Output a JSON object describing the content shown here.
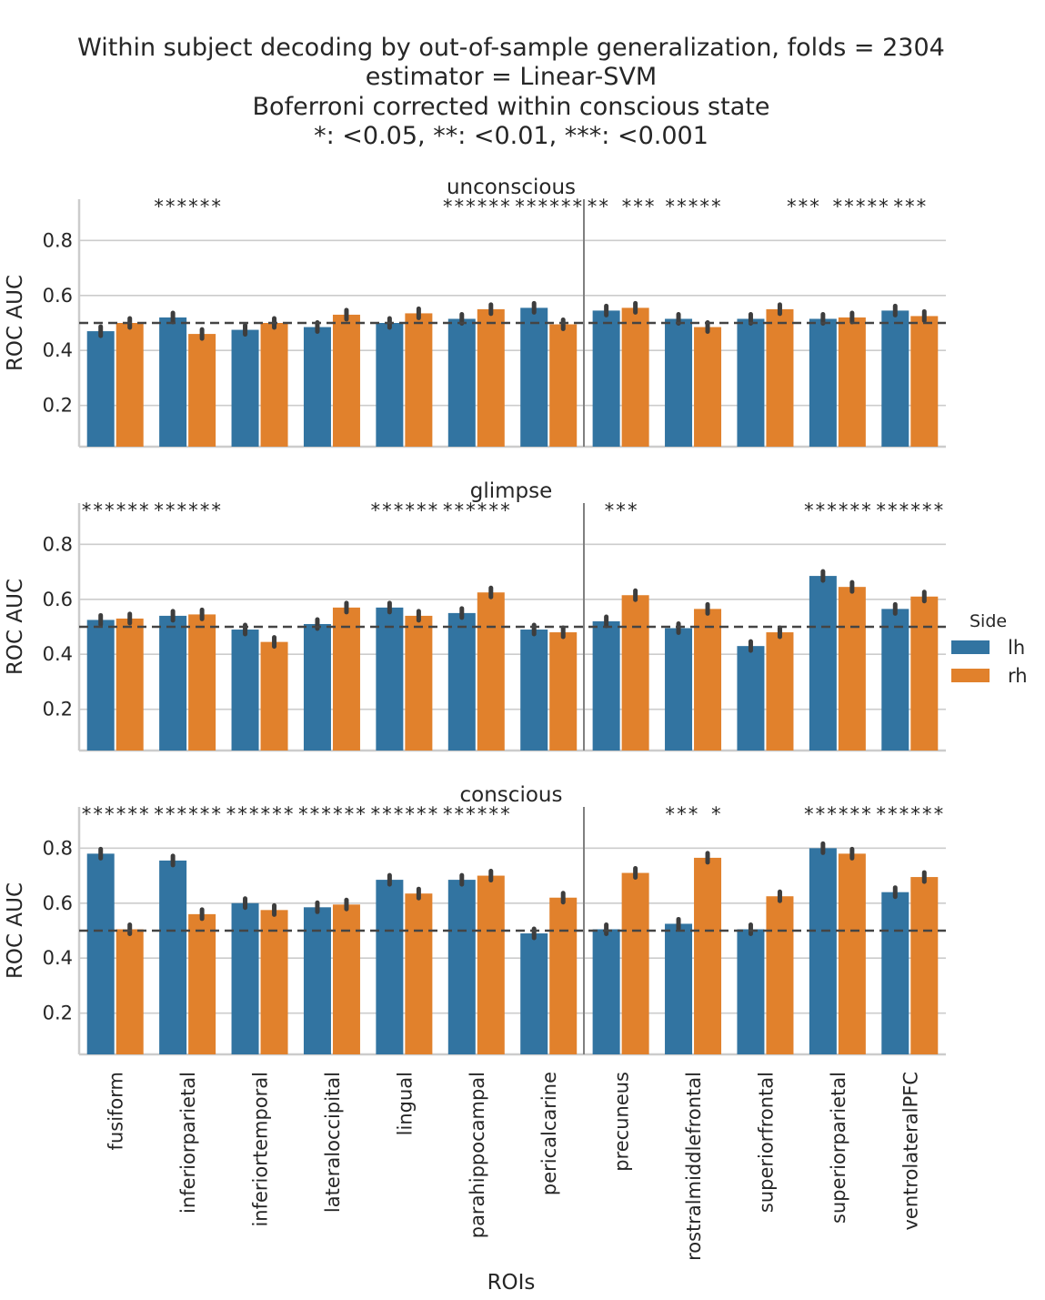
{
  "figure": {
    "title_lines": [
      "Within subject decoding by out-of-sample generalization, folds = 2304",
      "estimator = Linear-SVM",
      "Boferroni corrected within conscious state",
      "*: <0.05, **: <0.01, ***: <0.001"
    ]
  },
  "chart_data": {
    "type": "bar",
    "xlabel": "ROIs",
    "ylabel": "ROC AUC",
    "ylim": [
      0.05,
      0.95
    ],
    "yticks": [
      0.2,
      0.4,
      0.6,
      0.8
    ],
    "chance_level": 0.5,
    "grid": "horizontal",
    "categories": [
      "fusiform",
      "inferiorparietal",
      "inferiortemporal",
      "lateraloccipital",
      "lingual",
      "parahippocampal",
      "pericalcarine",
      "precuneus",
      "rostralmiddlefrontal",
      "superiorfrontal",
      "superiorparietal",
      "ventrolateralPFC"
    ],
    "legend": {
      "title": "Side",
      "placement": "right",
      "entries": [
        "lh",
        "rh"
      ]
    },
    "colors": {
      "lh": "#3274a1",
      "rh": "#e1812c"
    },
    "panels": [
      {
        "title": "unconscious",
        "series": [
          {
            "name": "lh",
            "values": [
              0.47,
              0.52,
              0.475,
              0.485,
              0.5,
              0.515,
              0.555,
              0.545,
              0.515,
              0.515,
              0.515,
              0.545
            ]
          },
          {
            "name": "rh",
            "values": [
              0.5,
              0.46,
              0.5,
              0.53,
              0.535,
              0.55,
              0.495,
              0.555,
              0.485,
              0.55,
              0.52,
              0.525
            ]
          }
        ],
        "annotations": [
          "",
          "******",
          "",
          "",
          "",
          "******",
          "******",
          "** ***",
          "*****",
          "",
          "*** *****",
          "***"
        ]
      },
      {
        "title": "glimpse",
        "series": [
          {
            "name": "lh",
            "values": [
              0.525,
              0.54,
              0.49,
              0.51,
              0.57,
              0.55,
              0.49,
              0.52,
              0.495,
              0.43,
              0.685,
              0.565
            ]
          },
          {
            "name": "rh",
            "values": [
              0.53,
              0.545,
              0.445,
              0.57,
              0.54,
              0.625,
              0.48,
              0.615,
              0.565,
              0.48,
              0.645,
              0.61
            ]
          }
        ],
        "annotations": [
          "******",
          "******",
          "",
          "",
          "******",
          "******",
          "",
          "***",
          "",
          "",
          "******",
          "******"
        ]
      },
      {
        "title": "conscious",
        "series": [
          {
            "name": "lh",
            "values": [
              0.78,
              0.755,
              0.6,
              0.585,
              0.685,
              0.685,
              0.49,
              0.505,
              0.525,
              0.505,
              0.8,
              0.64
            ]
          },
          {
            "name": "rh",
            "values": [
              0.505,
              0.56,
              0.575,
              0.595,
              0.635,
              0.7,
              0.62,
              0.71,
              0.765,
              0.625,
              0.78,
              0.695
            ]
          }
        ],
        "annotations": [
          "******",
          "******",
          "******",
          "******",
          "******",
          "******",
          "",
          "",
          "***  *",
          "",
          "******",
          "******"
        ]
      }
    ]
  }
}
